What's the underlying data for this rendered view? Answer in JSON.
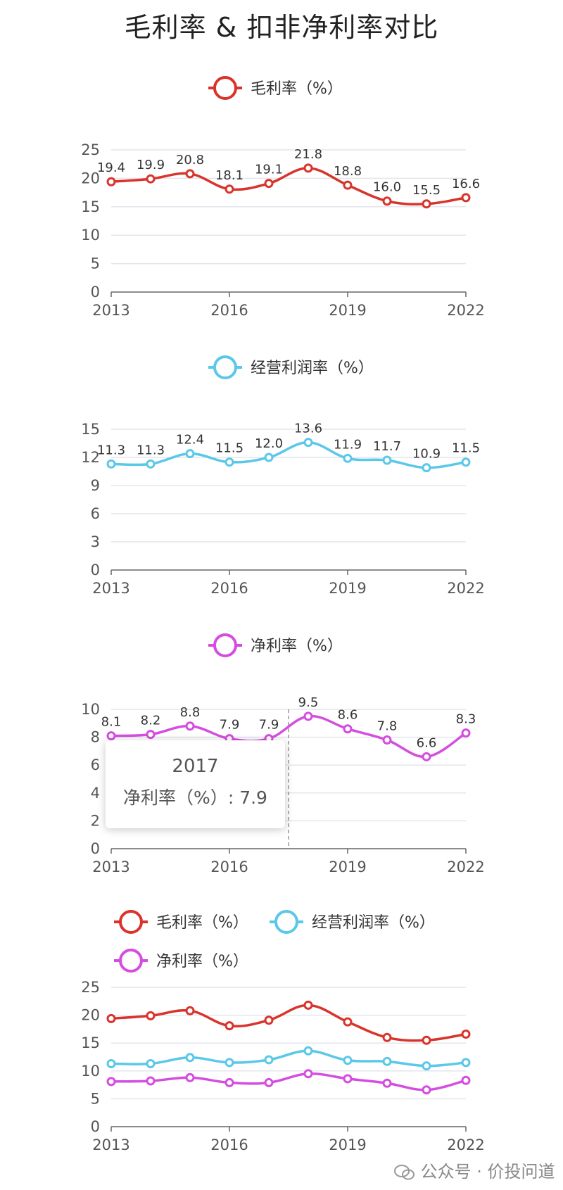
{
  "title": "毛利率 & 扣非净利率对比",
  "colors": {
    "gross": "#d9342b",
    "operating": "#5ac8e8",
    "net": "#d54de0",
    "grid": "#e3e6ee",
    "axis": "#666666"
  },
  "tooltip": {
    "year": "2017",
    "series": "净利率（%）",
    "value": "7.9"
  },
  "watermark": "公众号 · 价投问道",
  "chart_data": [
    {
      "type": "line",
      "legend": [
        "毛利率（%）"
      ],
      "x": [
        2013,
        2014,
        2015,
        2016,
        2017,
        2018,
        2019,
        2020,
        2021,
        2022
      ],
      "xticks": [
        "2013",
        "2016",
        "2019",
        "2022"
      ],
      "ylim": [
        0,
        25
      ],
      "yticks": [
        0,
        5,
        10,
        15,
        20,
        25
      ],
      "series": [
        {
          "name": "毛利率（%）",
          "color": "gross",
          "values": [
            19.4,
            19.9,
            20.8,
            18.1,
            19.1,
            21.8,
            18.8,
            16.0,
            15.5,
            16.6
          ]
        }
      ],
      "data_labels": true
    },
    {
      "type": "line",
      "legend": [
        "经营利润率（%）"
      ],
      "x": [
        2013,
        2014,
        2015,
        2016,
        2017,
        2018,
        2019,
        2020,
        2021,
        2022
      ],
      "xticks": [
        "2013",
        "2016",
        "2019",
        "2022"
      ],
      "ylim": [
        0,
        15
      ],
      "yticks": [
        0,
        3,
        6,
        9,
        12,
        15
      ],
      "series": [
        {
          "name": "经营利润率（%）",
          "color": "operating",
          "values": [
            11.3,
            11.3,
            12.4,
            11.5,
            12.0,
            13.6,
            11.9,
            11.7,
            10.9,
            11.5
          ]
        }
      ],
      "data_labels": true
    },
    {
      "type": "line",
      "legend": [
        "净利率（%）"
      ],
      "x": [
        2013,
        2014,
        2015,
        2016,
        2017,
        2018,
        2019,
        2020,
        2021,
        2022
      ],
      "xticks": [
        "2013",
        "2016",
        "2019",
        "2022"
      ],
      "ylim": [
        0,
        10
      ],
      "yticks": [
        0,
        2,
        4,
        6,
        8,
        10
      ],
      "series": [
        {
          "name": "净利率（%）",
          "color": "net",
          "values": [
            8.1,
            8.2,
            8.8,
            7.9,
            7.9,
            9.5,
            8.6,
            7.8,
            6.6,
            8.3
          ]
        }
      ],
      "data_labels": true,
      "crosshair_x": 2017.5
    },
    {
      "type": "line",
      "legend": [
        "毛利率（%）",
        "经营利润率（%）",
        "净利率（%）"
      ],
      "x": [
        2013,
        2014,
        2015,
        2016,
        2017,
        2018,
        2019,
        2020,
        2021,
        2022
      ],
      "xticks": [
        "2013",
        "2016",
        "2019",
        "2022"
      ],
      "ylim": [
        0,
        25
      ],
      "yticks": [
        0,
        5,
        10,
        15,
        20,
        25
      ],
      "series": [
        {
          "name": "毛利率（%）",
          "color": "gross",
          "values": [
            19.4,
            19.9,
            20.8,
            18.1,
            19.1,
            21.8,
            18.8,
            16.0,
            15.5,
            16.6
          ]
        },
        {
          "name": "经营利润率（%）",
          "color": "operating",
          "values": [
            11.3,
            11.3,
            12.4,
            11.5,
            12.0,
            13.6,
            11.9,
            11.7,
            10.9,
            11.5
          ]
        },
        {
          "name": "净利率（%）",
          "color": "net",
          "values": [
            8.1,
            8.2,
            8.8,
            7.9,
            7.9,
            9.5,
            8.6,
            7.8,
            6.6,
            8.3
          ]
        }
      ],
      "data_labels": false
    }
  ]
}
